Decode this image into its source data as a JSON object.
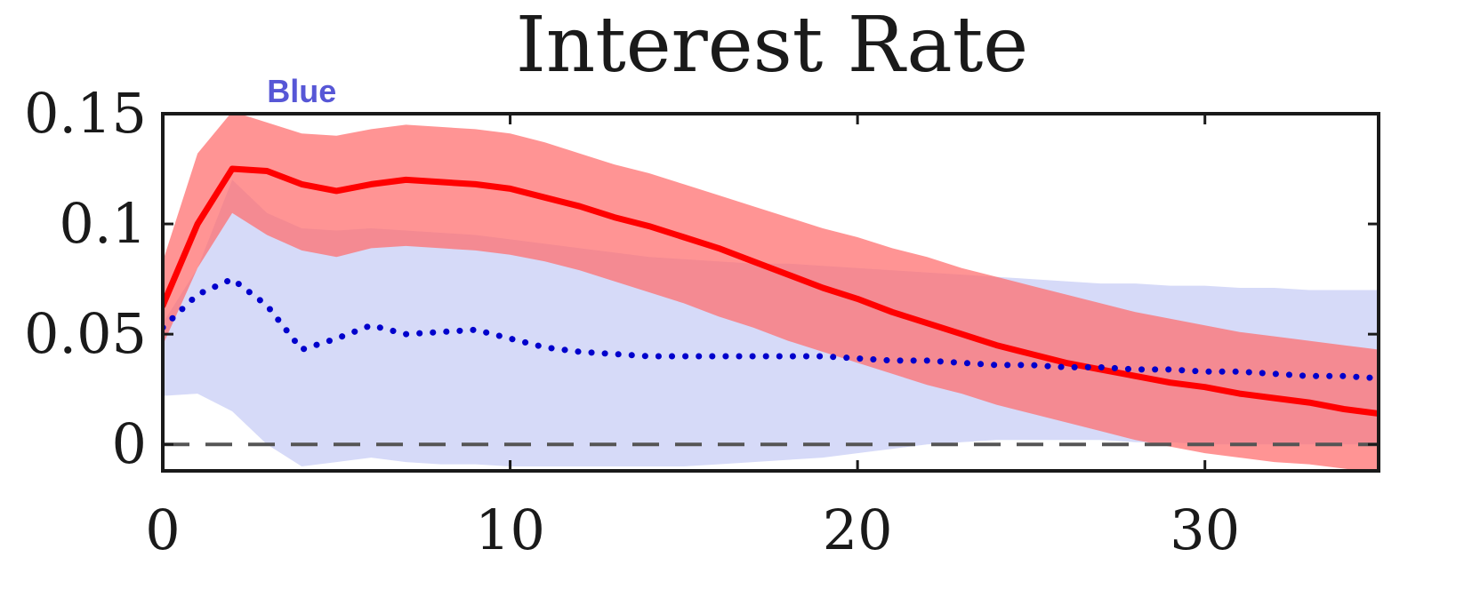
{
  "chart_data": {
    "type": "line",
    "title": "Interest Rate",
    "xlabel": "",
    "ylabel": "",
    "xlim": [
      0,
      35
    ],
    "ylim": [
      -0.012,
      0.15
    ],
    "xticks": [
      0,
      10,
      20,
      30
    ],
    "xtick_labels": [
      "0",
      "10",
      "20",
      "30"
    ],
    "yticks": [
      0,
      0.05,
      0.1,
      0.15
    ],
    "ytick_labels": [
      "0",
      "0.05",
      "0.1",
      "0.15"
    ],
    "grid": false,
    "legend": "none",
    "annotations": [
      {
        "text": "Blue",
        "x": 4,
        "y": 0.152
      }
    ],
    "x": [
      0,
      1,
      2,
      3,
      4,
      5,
      6,
      7,
      8,
      9,
      10,
      11,
      12,
      13,
      14,
      15,
      16,
      17,
      18,
      19,
      20,
      21,
      22,
      23,
      24,
      25,
      26,
      27,
      28,
      29,
      30,
      31,
      32,
      33,
      34,
      35
    ],
    "series": [
      {
        "line_style": "solid",
        "color": "#ff0000",
        "values": [
          0.063,
          0.1,
          0.125,
          0.124,
          0.118,
          0.115,
          0.118,
          0.12,
          0.119,
          0.118,
          0.116,
          0.112,
          0.108,
          0.103,
          0.099,
          0.094,
          0.089,
          0.083,
          0.077,
          0.071,
          0.066,
          0.06,
          0.055,
          0.05,
          0.045,
          0.041,
          0.037,
          0.034,
          0.031,
          0.028,
          0.026,
          0.023,
          0.021,
          0.019,
          0.016,
          0.014
        ],
        "band_lower": [
          0.045,
          0.08,
          0.105,
          0.095,
          0.088,
          0.085,
          0.089,
          0.09,
          0.089,
          0.088,
          0.086,
          0.083,
          0.079,
          0.074,
          0.069,
          0.064,
          0.058,
          0.053,
          0.047,
          0.042,
          0.037,
          0.032,
          0.027,
          0.023,
          0.018,
          0.014,
          0.01,
          0.006,
          0.002,
          -0.001,
          -0.004,
          -0.006,
          -0.008,
          -0.009,
          -0.011,
          -0.013
        ],
        "band_upper": [
          0.083,
          0.132,
          0.151,
          0.146,
          0.141,
          0.14,
          0.143,
          0.145,
          0.144,
          0.143,
          0.141,
          0.137,
          0.132,
          0.127,
          0.123,
          0.118,
          0.113,
          0.108,
          0.103,
          0.098,
          0.094,
          0.089,
          0.085,
          0.08,
          0.076,
          0.072,
          0.068,
          0.064,
          0.06,
          0.057,
          0.054,
          0.051,
          0.049,
          0.047,
          0.045,
          0.043
        ],
        "band_color": "#ff6b6b"
      },
      {
        "line_style": "dotted",
        "color": "#0000cc",
        "values": [
          0.053,
          0.068,
          0.075,
          0.063,
          0.043,
          0.048,
          0.054,
          0.05,
          0.051,
          0.052,
          0.048,
          0.044,
          0.042,
          0.041,
          0.04,
          0.04,
          0.04,
          0.04,
          0.04,
          0.04,
          0.039,
          0.038,
          0.038,
          0.037,
          0.036,
          0.036,
          0.035,
          0.035,
          0.034,
          0.034,
          0.033,
          0.033,
          0.032,
          0.031,
          0.031,
          0.03
        ],
        "band_lower": [
          0.022,
          0.023,
          0.015,
          0.0,
          -0.01,
          -0.008,
          -0.006,
          -0.008,
          -0.009,
          -0.009,
          -0.01,
          -0.01,
          -0.01,
          -0.01,
          -0.01,
          -0.01,
          -0.009,
          -0.008,
          -0.007,
          -0.006,
          -0.004,
          -0.002,
          0.0,
          0.001,
          0.002,
          0.002,
          0.002,
          0.002,
          0.001,
          0.001,
          0.0,
          0.0,
          0.0,
          0.0,
          0.0,
          0.0
        ],
        "band_upper": [
          0.055,
          0.08,
          0.12,
          0.105,
          0.098,
          0.097,
          0.098,
          0.097,
          0.096,
          0.095,
          0.093,
          0.091,
          0.089,
          0.087,
          0.085,
          0.084,
          0.083,
          0.082,
          0.082,
          0.081,
          0.08,
          0.079,
          0.078,
          0.077,
          0.076,
          0.075,
          0.074,
          0.073,
          0.073,
          0.072,
          0.072,
          0.071,
          0.071,
          0.07,
          0.07,
          0.07
        ],
        "band_color": "#cfd3f7"
      }
    ],
    "reference_line": {
      "y": 0,
      "style": "dashed",
      "color": "#555555"
    }
  }
}
